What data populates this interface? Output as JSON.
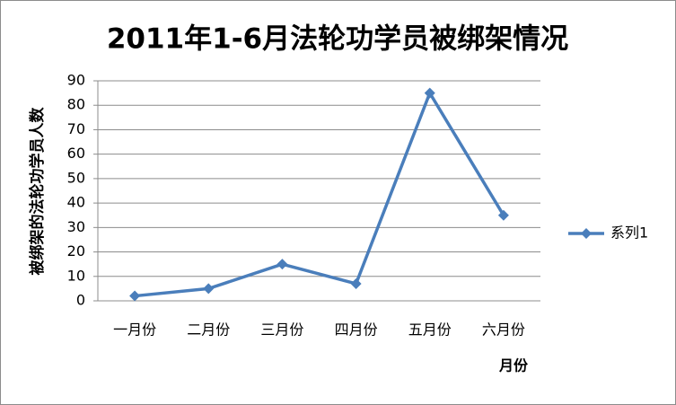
{
  "chart_data": {
    "type": "line",
    "title": "2011年1-6月法轮功学员被绑架情况",
    "x_label": "月份",
    "y_label": "被绑架的法轮功学员人数",
    "categories": [
      "一月份",
      "二月份",
      "三月份",
      "四月份",
      "五月份",
      "六月份"
    ],
    "series": [
      {
        "name": "系列1",
        "color": "#4a7ebb",
        "values": [
          2,
          5,
          15,
          7,
          85,
          35
        ]
      }
    ],
    "ylim": [
      0,
      90
    ],
    "yticks": [
      0,
      10,
      20,
      30,
      40,
      50,
      60,
      70,
      80,
      90
    ],
    "grid": true,
    "legend": "right"
  }
}
